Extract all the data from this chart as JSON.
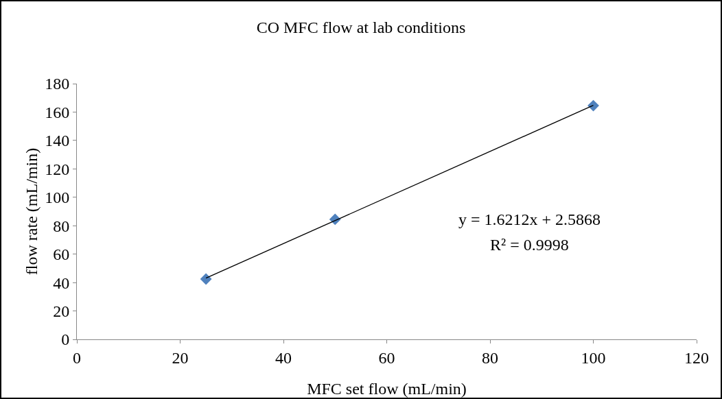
{
  "chart_data": {
    "type": "scatter",
    "title": "CO MFC flow at lab conditions",
    "xlabel": "MFC set flow (mL/min)",
    "ylabel": "flow rate (mL/min)",
    "series": [
      {
        "color": "#4f81bd",
        "x": [
          25,
          50,
          100
        ],
        "values": [
          42.5,
          84.5,
          164.5
        ]
      },
      {
        "type": "line",
        "marker": "none",
        "color": "#000000",
        "x": [
          25,
          100
        ],
        "values": [
          43.1,
          164.7
        ]
      }
    ],
    "annotations": [
      "y = 1.6212x + 2.5868",
      "R² = 0.9998"
    ],
    "xlim": [
      0,
      120
    ],
    "xticks": [
      0,
      20,
      40,
      60,
      80,
      100,
      120
    ],
    "ylim": [
      0,
      180
    ],
    "yticks": [
      0,
      20,
      40,
      60,
      80,
      100,
      120,
      140,
      160,
      180
    ],
    "grid": false,
    "marker": "diamond",
    "line_style": "solid"
  }
}
